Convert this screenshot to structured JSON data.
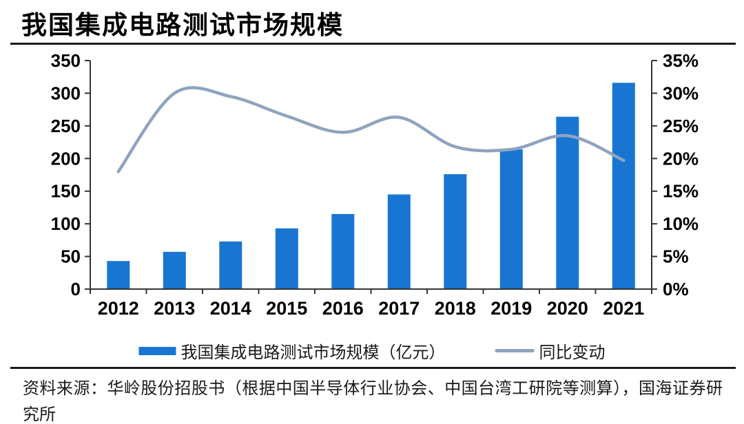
{
  "page": {
    "title": "我国集成电路测试市场规模",
    "source_note": "资料来源：华岭股份招股书（根据中国半导体行业协会、中国台湾工研院等测算），国海证券研究所"
  },
  "colors": {
    "bar": "#1876d2",
    "line": "#8fa3bf",
    "axis": "#333333",
    "text": "#000000",
    "rule": "#1a1a1a"
  },
  "chart_data": {
    "type": "bar",
    "title": "我国集成电路测试市场规模",
    "categories": [
      "2012",
      "2013",
      "2014",
      "2015",
      "2016",
      "2017",
      "2018",
      "2019",
      "2020",
      "2021"
    ],
    "series": [
      {
        "name": "我国集成电路测试市场规模（亿元）",
        "type": "bar",
        "axis": "left",
        "values": [
          43,
          57,
          73,
          93,
          115,
          145,
          176,
          214,
          264,
          316
        ]
      },
      {
        "name": "同比变动",
        "type": "line",
        "axis": "right",
        "values": [
          18.0,
          30.0,
          29.5,
          26.5,
          24.0,
          26.3,
          21.8,
          21.4,
          23.5,
          19.7
        ],
        "unit": "%",
        "style": "smooth"
      }
    ],
    "left_axis": {
      "min": 0,
      "max": 350,
      "step": 50,
      "tick_labels": [
        "0",
        "50",
        "100",
        "150",
        "200",
        "250",
        "300",
        "350"
      ]
    },
    "right_axis": {
      "min": 0,
      "max": 35,
      "step": 5,
      "unit": "%",
      "tick_labels": [
        "0%",
        "5%",
        "10%",
        "15%",
        "20%",
        "25%",
        "30%",
        "35%"
      ]
    },
    "grid": false,
    "legend_position": "bottom"
  }
}
